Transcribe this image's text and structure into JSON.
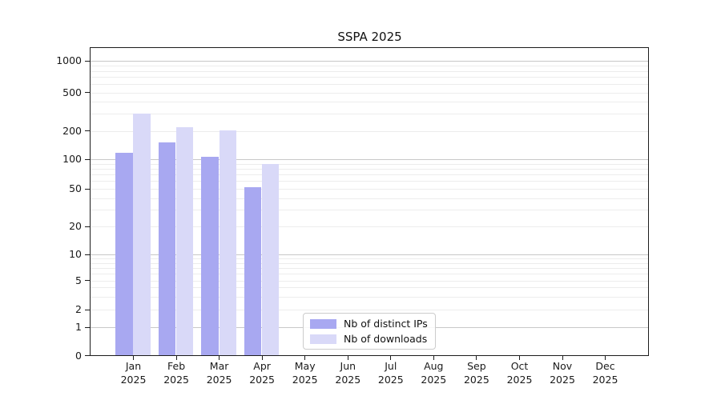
{
  "chart": {
    "title": "SSPA 2025"
  },
  "chart_data": {
    "type": "bar",
    "title": "SSPA 2025",
    "categories": [
      "Jan",
      "Feb",
      "Mar",
      "Apr",
      "May",
      "Jun",
      "Jul",
      "Aug",
      "Sep",
      "Oct",
      "Nov",
      "Dec"
    ],
    "category_year": "2025",
    "series": [
      {
        "name": "Nb of distinct IPs",
        "color": "#a8a8f1",
        "values": [
          116,
          152,
          107,
          52,
          null,
          null,
          null,
          null,
          null,
          null,
          null,
          null
        ]
      },
      {
        "name": "Nb of downloads",
        "color": "#d9d9f8",
        "values": [
          300,
          218,
          203,
          89,
          null,
          null,
          null,
          null,
          null,
          null,
          null,
          null
        ]
      }
    ],
    "xlabel": "",
    "ylabel": "",
    "yscale": "symlog",
    "yticks": [
      0,
      1,
      2,
      5,
      10,
      20,
      50,
      100,
      200,
      500,
      1000
    ],
    "ytick_majors": [
      1,
      10,
      100,
      1000
    ],
    "ylim": [
      0,
      1300
    ],
    "grid": true,
    "legend_position": "lower center-left inside plot"
  }
}
